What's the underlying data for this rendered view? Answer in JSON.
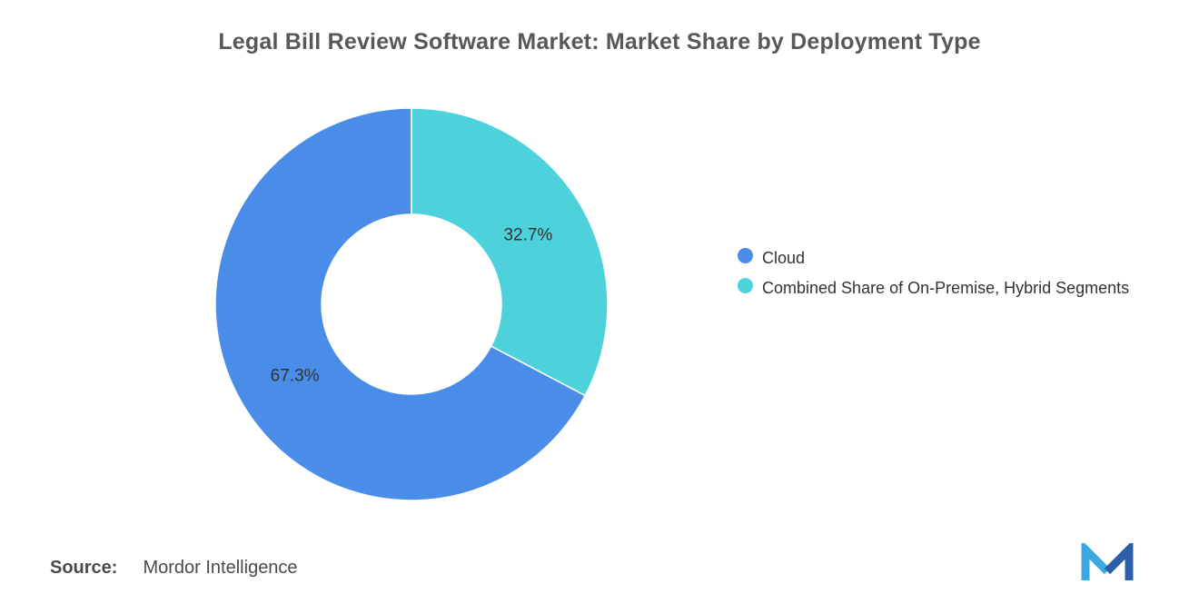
{
  "title": "Legal Bill Review Software Market: Market Share by Deployment Type",
  "source": {
    "label": "Source:",
    "value": "Mordor Intelligence"
  },
  "chart_data": {
    "type": "pie",
    "donut": true,
    "title": "Legal Bill Review Software Market: Market Share by Deployment Type",
    "labels": [
      "Cloud",
      "Combined Share of On-Premise, Hybrid Segments"
    ],
    "values": [
      67.3,
      32.7
    ],
    "data_labels": [
      "67.3%",
      "32.7%"
    ],
    "colors": [
      "#4a8de8",
      "#4dd2db"
    ],
    "legend_position": "right",
    "direction": "counterclockwise",
    "start_angle_deg": 0,
    "grid": false
  }
}
